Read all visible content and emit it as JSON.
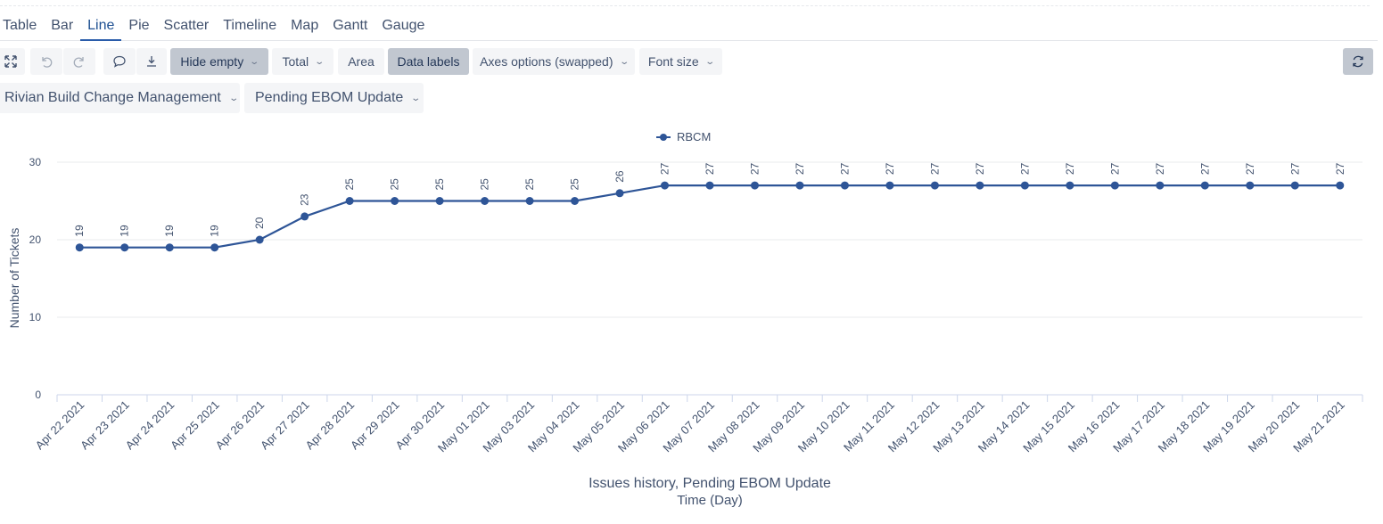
{
  "tabs": [
    {
      "label": "Table",
      "active": false
    },
    {
      "label": "Bar",
      "active": false
    },
    {
      "label": "Line",
      "active": true
    },
    {
      "label": "Pie",
      "active": false
    },
    {
      "label": "Scatter",
      "active": false
    },
    {
      "label": "Timeline",
      "active": false
    },
    {
      "label": "Map",
      "active": false
    },
    {
      "label": "Gantt",
      "active": false
    },
    {
      "label": "Gauge",
      "active": false
    }
  ],
  "toolbar": {
    "expand_icon": "expand-icon",
    "undo_icon": "undo-icon",
    "redo_icon": "redo-icon",
    "comment_icon": "comment-icon",
    "download_icon": "download-icon",
    "refresh_icon": "refresh-icon",
    "hide_empty": "Hide empty",
    "total": "Total",
    "area": "Area",
    "data_labels": "Data labels",
    "axes_options": "Axes options (swapped)",
    "font_size": "Font size"
  },
  "selectors": {
    "project": "Rivian Build Change Management",
    "status": "Pending EBOM Update"
  },
  "colors": {
    "series": "#2e5597",
    "active_tab": "#1d4f91",
    "pressed_button": "#c1c7d0",
    "button_bg": "#f4f5f7"
  },
  "chart_data": {
    "type": "line",
    "x": [
      "Apr 22 2021",
      "Apr 23 2021",
      "Apr 24 2021",
      "Apr 25 2021",
      "Apr 26 2021",
      "Apr 27 2021",
      "Apr 28 2021",
      "Apr 29 2021",
      "Apr 30 2021",
      "May 01 2021",
      "May 03 2021",
      "May 04 2021",
      "May 05 2021",
      "May 06 2021",
      "May 07 2021",
      "May 08 2021",
      "May 09 2021",
      "May 10 2021",
      "May 11 2021",
      "May 12 2021",
      "May 13 2021",
      "May 14 2021",
      "May 15 2021",
      "May 16 2021",
      "May 17 2021",
      "May 18 2021",
      "May 19 2021",
      "May 20 2021",
      "May 21 2021"
    ],
    "series": [
      {
        "name": "RBCM",
        "values": [
          19,
          19,
          19,
          19,
          20,
          23,
          25,
          25,
          25,
          25,
          25,
          25,
          26,
          27,
          27,
          27,
          27,
          27,
          27,
          27,
          27,
          27,
          27,
          27,
          27,
          27,
          27,
          27,
          27
        ]
      }
    ],
    "title": "Issues history, Pending EBOM Update",
    "xlabel": "Time (Day)",
    "ylabel": "Number of Tickets",
    "ylim": [
      0,
      30
    ],
    "yticks": [
      0,
      10,
      20,
      30
    ],
    "grid": true,
    "legend_position": "top-center",
    "data_labels": true
  }
}
